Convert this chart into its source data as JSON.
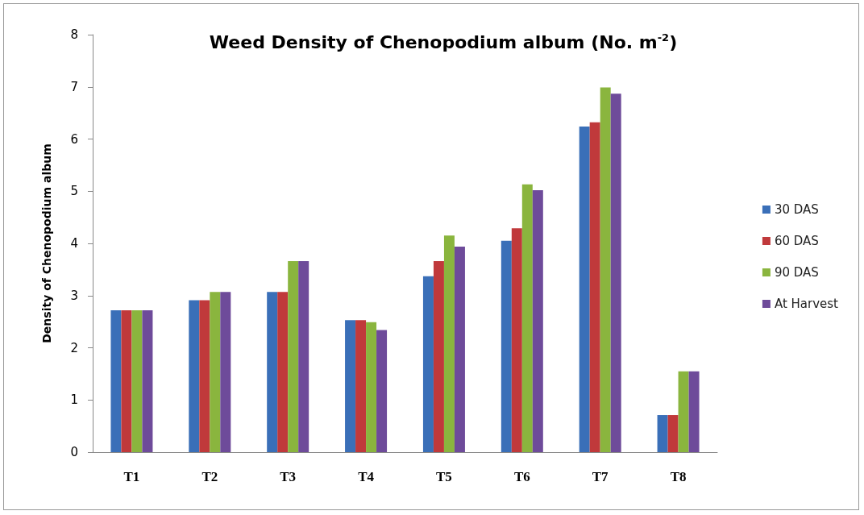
{
  "chart_data": {
    "type": "bar",
    "title": "Weed Density of Chenopodium album (No. m$^{-2}$)",
    "ylabel": "Density of Chenopodium album",
    "categories": [
      "T1",
      "T2",
      "T3",
      "T4",
      "T5",
      "T6",
      "T7",
      "T8"
    ],
    "series": [
      {
        "name": "30 DAS",
        "color": "#3a6fb8",
        "values": [
          2.72,
          2.91,
          3.07,
          2.53,
          3.37,
          4.05,
          6.24,
          0.71
        ]
      },
      {
        "name": "60 DAS",
        "color": "#c0393b",
        "values": [
          2.72,
          2.91,
          3.07,
          2.53,
          3.66,
          4.29,
          6.32,
          0.71
        ]
      },
      {
        "name": "90 DAS",
        "color": "#8ab53e",
        "values": [
          2.72,
          3.07,
          3.66,
          2.49,
          4.15,
          5.13,
          6.99,
          1.55
        ]
      },
      {
        "name": "At Harvest",
        "color": "#6e4b9a",
        "values": [
          2.72,
          3.07,
          3.66,
          2.34,
          3.94,
          5.02,
          6.87,
          1.55
        ]
      }
    ],
    "ylim": [
      0,
      8
    ],
    "yticks": [
      0,
      1,
      2,
      3,
      4,
      5,
      6,
      7,
      8
    ],
    "grid": false,
    "legend": "right"
  }
}
